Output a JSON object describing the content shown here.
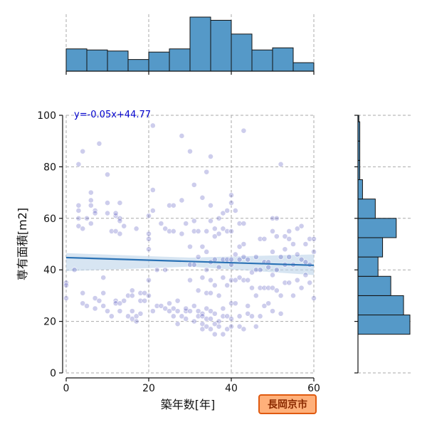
{
  "chart_data": {
    "type": "scatter",
    "xlabel": "築年数[年]",
    "ylabel": "専有面積[m2]",
    "xlim": [
      0,
      60
    ],
    "ylim": [
      0,
      100
    ],
    "xticks": [
      0,
      20,
      40,
      60
    ],
    "yticks": [
      0,
      20,
      40,
      60,
      80,
      100
    ],
    "grid": true,
    "annotation": "y=-0.05x+44.77",
    "badge": "長岡京市",
    "regression": {
      "slope": -0.05,
      "intercept": 44.77,
      "band_low": [
        39.5,
        38.0
      ],
      "band_high": [
        46.5,
        46.0
      ]
    },
    "colors": {
      "point": "#1a1aa8",
      "hist": "#5599c8",
      "line": "#2a72b5",
      "band": "#bcd4ea",
      "badge_fill": "#ffb07a",
      "badge_border": "#e05a10"
    },
    "points": [
      [
        0,
        35
      ],
      [
        0,
        34
      ],
      [
        0,
        29
      ],
      [
        2,
        40
      ],
      [
        3,
        65
      ],
      [
        3,
        63
      ],
      [
        3,
        60
      ],
      [
        3,
        57
      ],
      [
        3,
        81
      ],
      [
        4,
        86
      ],
      [
        4,
        56
      ],
      [
        4,
        27
      ],
      [
        4,
        31
      ],
      [
        5,
        26
      ],
      [
        5,
        60
      ],
      [
        6,
        65
      ],
      [
        6,
        70
      ],
      [
        6,
        67
      ],
      [
        6,
        58
      ],
      [
        7,
        63
      ],
      [
        7,
        62
      ],
      [
        7,
        29
      ],
      [
        7,
        25
      ],
      [
        8,
        89
      ],
      [
        8,
        28
      ],
      [
        9,
        37
      ],
      [
        9,
        31
      ],
      [
        9,
        26
      ],
      [
        10,
        77
      ],
      [
        10,
        62
      ],
      [
        10,
        66
      ],
      [
        10,
        24
      ],
      [
        11,
        22
      ],
      [
        11,
        55
      ],
      [
        12,
        61
      ],
      [
        12,
        62
      ],
      [
        12,
        55
      ],
      [
        12,
        28
      ],
      [
        12,
        27
      ],
      [
        13,
        66
      ],
      [
        13,
        60
      ],
      [
        13,
        59
      ],
      [
        13,
        54
      ],
      [
        13,
        27
      ],
      [
        13,
        24
      ],
      [
        14,
        28
      ],
      [
        14,
        57
      ],
      [
        15,
        22
      ],
      [
        15,
        30
      ],
      [
        16,
        32
      ],
      [
        16,
        30
      ],
      [
        16,
        24
      ],
      [
        16,
        21
      ],
      [
        17,
        56
      ],
      [
        17,
        22
      ],
      [
        17,
        20
      ],
      [
        18,
        31
      ],
      [
        18,
        28
      ],
      [
        18,
        23
      ],
      [
        19,
        28
      ],
      [
        19,
        31
      ],
      [
        20,
        30
      ],
      [
        20,
        36
      ],
      [
        20,
        48
      ],
      [
        20,
        52
      ],
      [
        20,
        54
      ],
      [
        20,
        61
      ],
      [
        21,
        96
      ],
      [
        21,
        71
      ],
      [
        21,
        63
      ],
      [
        21,
        24
      ],
      [
        22,
        26
      ],
      [
        22,
        40
      ],
      [
        23,
        26
      ],
      [
        23,
        58
      ],
      [
        24,
        56
      ],
      [
        24,
        25
      ],
      [
        24,
        40
      ],
      [
        25,
        65
      ],
      [
        25,
        55
      ],
      [
        25,
        24
      ],
      [
        25,
        27
      ],
      [
        26,
        65
      ],
      [
        26,
        55
      ],
      [
        26,
        22
      ],
      [
        26,
        25
      ],
      [
        27,
        24
      ],
      [
        27,
        19
      ],
      [
        27,
        28
      ],
      [
        28,
        92
      ],
      [
        28,
        67
      ],
      [
        28,
        22
      ],
      [
        28,
        54
      ],
      [
        29,
        58
      ],
      [
        29,
        24
      ],
      [
        29,
        21
      ],
      [
        29,
        25
      ],
      [
        30,
        86
      ],
      [
        30,
        42
      ],
      [
        30,
        49
      ],
      [
        30,
        36
      ],
      [
        30,
        24
      ],
      [
        31,
        55
      ],
      [
        31,
        73
      ],
      [
        31,
        59
      ],
      [
        31,
        42
      ],
      [
        31,
        26
      ],
      [
        31,
        20
      ],
      [
        32,
        55
      ],
      [
        32,
        45
      ],
      [
        32,
        32
      ],
      [
        32,
        24
      ],
      [
        32,
        22
      ],
      [
        33,
        68
      ],
      [
        33,
        49
      ],
      [
        33,
        37
      ],
      [
        33,
        23
      ],
      [
        33,
        22
      ],
      [
        33,
        19
      ],
      [
        33,
        17
      ],
      [
        34,
        78
      ],
      [
        34,
        55
      ],
      [
        34,
        47
      ],
      [
        34,
        40
      ],
      [
        34,
        31
      ],
      [
        34,
        25
      ],
      [
        34,
        21
      ],
      [
        34,
        18
      ],
      [
        35,
        84
      ],
      [
        35,
        65
      ],
      [
        35,
        59
      ],
      [
        35,
        43
      ],
      [
        35,
        36
      ],
      [
        35,
        31
      ],
      [
        35,
        24
      ],
      [
        35,
        21
      ],
      [
        35,
        17
      ],
      [
        36,
        56
      ],
      [
        36,
        53
      ],
      [
        36,
        44
      ],
      [
        36,
        34
      ],
      [
        36,
        23
      ],
      [
        36,
        19
      ],
      [
        36,
        15
      ],
      [
        37,
        60
      ],
      [
        37,
        54
      ],
      [
        37,
        41
      ],
      [
        37,
        30
      ],
      [
        37,
        20
      ],
      [
        37,
        18
      ],
      [
        38,
        62
      ],
      [
        38,
        56
      ],
      [
        38,
        44
      ],
      [
        38,
        37
      ],
      [
        38,
        25
      ],
      [
        38,
        22
      ],
      [
        38,
        15
      ],
      [
        39,
        63
      ],
      [
        39,
        55
      ],
      [
        39,
        44
      ],
      [
        39,
        34
      ],
      [
        39,
        22
      ],
      [
        39,
        17
      ],
      [
        40,
        69
      ],
      [
        40,
        66
      ],
      [
        40,
        55
      ],
      [
        40,
        44
      ],
      [
        40,
        42
      ],
      [
        40,
        36
      ],
      [
        40,
        27
      ],
      [
        40,
        21
      ],
      [
        40,
        18
      ],
      [
        41,
        63
      ],
      [
        41,
        46
      ],
      [
        41,
        36
      ],
      [
        41,
        27
      ],
      [
        42,
        58
      ],
      [
        42,
        49
      ],
      [
        42,
        44
      ],
      [
        42,
        37
      ],
      [
        42,
        22
      ],
      [
        42,
        18
      ],
      [
        43,
        94
      ],
      [
        43,
        58
      ],
      [
        43,
        50
      ],
      [
        43,
        45
      ],
      [
        43,
        36
      ],
      [
        43,
        17
      ],
      [
        44,
        44
      ],
      [
        44,
        36
      ],
      [
        44,
        26
      ],
      [
        44,
        23
      ],
      [
        45,
        39
      ],
      [
        45,
        33
      ],
      [
        45,
        22
      ],
      [
        46,
        45
      ],
      [
        46,
        40
      ],
      [
        46,
        30
      ],
      [
        46,
        18
      ],
      [
        47,
        52
      ],
      [
        47,
        40
      ],
      [
        47,
        33
      ],
      [
        47,
        22
      ],
      [
        48,
        52
      ],
      [
        48,
        43
      ],
      [
        48,
        33
      ],
      [
        48,
        26
      ],
      [
        49,
        43
      ],
      [
        49,
        41
      ],
      [
        49,
        33
      ],
      [
        49,
        27
      ],
      [
        50,
        60
      ],
      [
        50,
        55
      ],
      [
        50,
        47
      ],
      [
        50,
        38
      ],
      [
        50,
        33
      ],
      [
        50,
        24
      ],
      [
        51,
        60
      ],
      [
        51,
        53
      ],
      [
        51,
        40
      ],
      [
        51,
        32
      ],
      [
        52,
        81
      ],
      [
        52,
        45
      ],
      [
        52,
        30
      ],
      [
        52,
        23
      ],
      [
        53,
        53
      ],
      [
        53,
        48
      ],
      [
        53,
        42
      ],
      [
        53,
        35
      ],
      [
        54,
        55
      ],
      [
        54,
        52
      ],
      [
        54,
        45
      ],
      [
        54,
        35
      ],
      [
        55,
        50
      ],
      [
        55,
        42
      ],
      [
        55,
        30
      ],
      [
        56,
        56
      ],
      [
        56,
        46
      ],
      [
        56,
        36
      ],
      [
        57,
        57
      ],
      [
        57,
        44
      ],
      [
        57,
        33
      ],
      [
        58,
        50
      ],
      [
        58,
        43
      ],
      [
        58,
        38
      ],
      [
        59,
        52
      ],
      [
        59,
        42
      ],
      [
        59,
        35
      ],
      [
        60,
        52
      ],
      [
        60,
        47
      ],
      [
        60,
        29
      ]
    ],
    "hist_x": {
      "bin_edges": [
        0,
        5,
        10,
        15,
        20,
        25,
        30,
        35,
        40,
        45,
        50,
        55,
        60
      ],
      "counts": [
        21,
        20,
        19,
        11,
        18,
        21,
        51,
        48,
        35,
        20,
        22,
        8
      ]
    },
    "hist_y": {
      "bin_edges": [
        15,
        22.5,
        30,
        37.5,
        45,
        52.5,
        60,
        67.5,
        75,
        82.5,
        90,
        97.5,
        100
      ],
      "counts": [
        57,
        50,
        36,
        22,
        27,
        42,
        19,
        5,
        2,
        2,
        2,
        1
      ]
    }
  }
}
